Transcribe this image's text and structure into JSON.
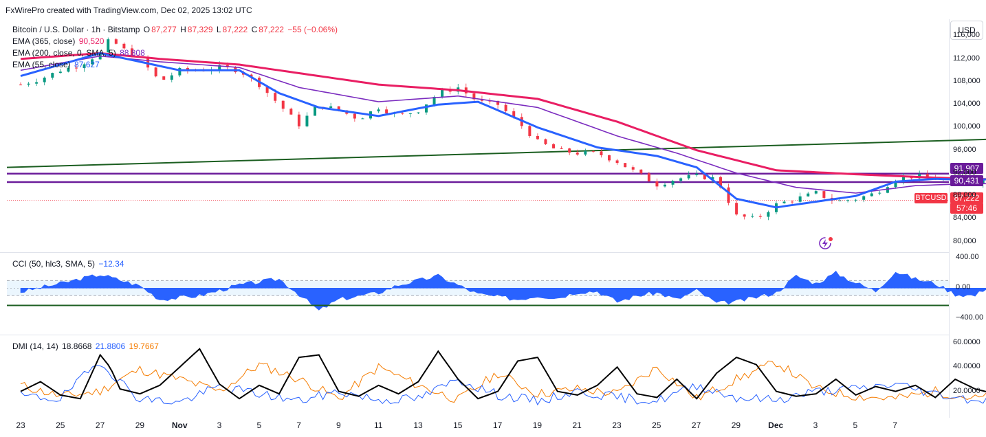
{
  "header": {
    "credit": "FxWirePro created with TradingView.com, Dec 02, 2025 13:02 UTC"
  },
  "currency_button": "USD",
  "legend": {
    "symbol": "Bitcoin / U.S. Dollar · 1h · Bitstamp",
    "o_label": "O",
    "o_value": "87,277",
    "h_label": "H",
    "h_value": "87,329",
    "l_label": "L",
    "l_value": "87,222",
    "c_label": "C",
    "c_value": "87,222",
    "change": "−55 (−0.06%)",
    "ema365_label": "EMA (365, close)",
    "ema365_value": "90,520",
    "ema200_label": "EMA (200, close, 0, SMA, 5)",
    "ema200_value": "88,808",
    "ema55_label": "EMA (55, close)",
    "ema55_value": "87,627",
    "cci_label": "CCI (50, hlc3, SMA, 5)",
    "cci_value": "−12.34",
    "dmi_label": "DMI (14, 14)",
    "dmi_adx": "18.8668",
    "dmi_plus": "21.8806",
    "dmi_minus": "19.7667"
  },
  "price_labels": {
    "upper_line": "91,907",
    "lower_line": "90,431",
    "symbol_tag": "BTCUSD",
    "last_price": "87,222",
    "countdown": "57:46"
  },
  "colors": {
    "up": "#089981",
    "down": "#f23645",
    "ema55": "#2962ff",
    "ema200": "#7b2cbf",
    "ema365": "#e91e63",
    "trend": "#1b5e20",
    "support": "#6a1b9a",
    "cci_fill": "#2962ff",
    "adx": "#000000",
    "di_plus": "#2962ff",
    "di_minus": "#f57c00"
  },
  "chart_data": [
    {
      "type": "candlestick",
      "title": "Bitcoin / U.S. Dollar · 1h · Bitstamp",
      "y_ticks": [
        "116,000",
        "112,000",
        "108,000",
        "104,000",
        "100,000",
        "96,000",
        "92,000",
        "88,000",
        "84,000",
        "80,000"
      ],
      "ylim": [
        79000,
        117500
      ],
      "x_ticks": [
        "23",
        "25",
        "27",
        "29",
        "Nov",
        "3",
        "5",
        "7",
        "9",
        "11",
        "13",
        "15",
        "17",
        "19",
        "21",
        "23",
        "25",
        "27",
        "29",
        "Dec",
        "3",
        "5",
        "7"
      ],
      "price_path": [
        [
          0,
          107500
        ],
        [
          1,
          108500
        ],
        [
          2,
          110000
        ],
        [
          3,
          111000
        ],
        [
          4,
          113000
        ],
        [
          4.5,
          115500
        ],
        [
          5,
          114000
        ],
        [
          6,
          112000
        ],
        [
          7,
          108000
        ],
        [
          8,
          110000
        ],
        [
          9,
          110000
        ],
        [
          10,
          110500
        ],
        [
          11,
          110000
        ],
        [
          12,
          107500
        ],
        [
          13,
          104000
        ],
        [
          14,
          100500
        ],
        [
          15,
          104000
        ],
        [
          16,
          103000
        ],
        [
          17,
          101500
        ],
        [
          18,
          103500
        ],
        [
          19,
          102000
        ],
        [
          20,
          103000
        ],
        [
          21,
          106000
        ],
        [
          22,
          107000
        ],
        [
          23,
          104500
        ],
        [
          24,
          104000
        ],
        [
          25,
          101000
        ],
        [
          26,
          97500
        ],
        [
          27,
          96000
        ],
        [
          28,
          95500
        ],
        [
          29,
          95500
        ],
        [
          30,
          94000
        ],
        [
          31,
          92000
        ],
        [
          32,
          90000
        ],
        [
          33,
          91000
        ],
        [
          34,
          91500
        ],
        [
          35,
          91000
        ],
        [
          36,
          84500
        ],
        [
          37,
          84000
        ],
        [
          38,
          86500
        ],
        [
          39,
          87500
        ],
        [
          40,
          88500
        ],
        [
          41,
          87000
        ],
        [
          42,
          87500
        ],
        [
          43,
          88500
        ],
        [
          44,
          91000
        ],
        [
          45,
          91500
        ],
        [
          46,
          91000
        ],
        [
          47,
          90500
        ],
        [
          48,
          90500
        ],
        [
          49,
          91000
        ],
        [
          50,
          86500
        ],
        [
          51,
          85000
        ],
        [
          52,
          86500
        ],
        [
          53,
          87222
        ]
      ],
      "ema55": [
        [
          0,
          109000
        ],
        [
          4,
          113000
        ],
        [
          6,
          111500
        ],
        [
          8,
          110000
        ],
        [
          11,
          110000
        ],
        [
          13,
          106000
        ],
        [
          15,
          103500
        ],
        [
          18,
          102000
        ],
        [
          21,
          104000
        ],
        [
          23,
          104500
        ],
        [
          26,
          100000
        ],
        [
          29,
          96500
        ],
        [
          32,
          95000
        ],
        [
          34,
          93000
        ],
        [
          36,
          87500
        ],
        [
          38,
          86000
        ],
        [
          40,
          87000
        ],
        [
          42,
          88000
        ],
        [
          44,
          90500
        ],
        [
          46,
          91000
        ],
        [
          48,
          90800
        ],
        [
          49,
          91000
        ],
        [
          50,
          89500
        ],
        [
          52,
          88000
        ],
        [
          53,
          87627
        ]
      ],
      "ema200": [
        [
          0,
          110000
        ],
        [
          4,
          112500
        ],
        [
          7,
          111500
        ],
        [
          11,
          110500
        ],
        [
          14,
          107000
        ],
        [
          18,
          104500
        ],
        [
          22,
          105500
        ],
        [
          26,
          103500
        ],
        [
          30,
          98500
        ],
        [
          33,
          95500
        ],
        [
          36,
          92000
        ],
        [
          39,
          89500
        ],
        [
          42,
          88500
        ],
        [
          45,
          89800
        ],
        [
          48,
          90200
        ],
        [
          50,
          90000
        ],
        [
          53,
          88808
        ]
      ],
      "ema365": [
        [
          0,
          112000
        ],
        [
          4,
          113000
        ],
        [
          7,
          112000
        ],
        [
          11,
          111000
        ],
        [
          14,
          109500
        ],
        [
          18,
          107500
        ],
        [
          22,
          106500
        ],
        [
          26,
          105000
        ],
        [
          30,
          101000
        ],
        [
          34,
          96000
        ],
        [
          38,
          92500
        ],
        [
          42,
          91800
        ],
        [
          46,
          91200
        ],
        [
          50,
          90800
        ],
        [
          53,
          90520
        ]
      ],
      "trend_line": [
        [
          0,
          93000
        ],
        [
          53,
          98000
        ]
      ],
      "horizontal_levels": [
        91907,
        90431
      ],
      "last_price": 87222
    },
    {
      "type": "area",
      "title": "CCI (50, hlc3, SMA, 5)",
      "y_ticks": [
        "400.00",
        "0.00",
        "−400.00"
      ],
      "ylim": [
        -600,
        450
      ],
      "bands": [
        100,
        -100
      ],
      "support_level": -230,
      "values": [
        [
          0,
          -50
        ],
        [
          2,
          60
        ],
        [
          4,
          180
        ],
        [
          6,
          30
        ],
        [
          7,
          -150
        ],
        [
          9,
          -100
        ],
        [
          11,
          40
        ],
        [
          13,
          120
        ],
        [
          14,
          -80
        ],
        [
          15,
          -300
        ],
        [
          16,
          -150
        ],
        [
          18,
          -60
        ],
        [
          19,
          40
        ],
        [
          21,
          160
        ],
        [
          23,
          -80
        ],
        [
          25,
          -150
        ],
        [
          26,
          -100
        ],
        [
          27,
          -130
        ],
        [
          28,
          -50
        ],
        [
          29,
          -40
        ],
        [
          30,
          -180
        ],
        [
          31,
          -100
        ],
        [
          32,
          -60
        ],
        [
          33,
          -150
        ],
        [
          34,
          -30
        ],
        [
          35,
          -200
        ],
        [
          36,
          -180
        ],
        [
          37,
          -120
        ],
        [
          38,
          -60
        ],
        [
          39,
          160
        ],
        [
          40,
          60
        ],
        [
          41,
          200
        ],
        [
          42,
          70
        ],
        [
          43,
          -40
        ],
        [
          44,
          220
        ],
        [
          45,
          120
        ],
        [
          46,
          60
        ],
        [
          47,
          -80
        ],
        [
          48,
          -100
        ],
        [
          49,
          90
        ],
        [
          50,
          -550
        ],
        [
          51,
          -200
        ],
        [
          52,
          -50
        ],
        [
          53,
          -12.34
        ]
      ]
    },
    {
      "type": "line",
      "title": "DMI (14, 14)",
      "y_ticks": [
        "60.0000",
        "40.0000",
        "20.0000"
      ],
      "ylim": [
        0,
        65
      ],
      "adx": [
        [
          0,
          20
        ],
        [
          1,
          28
        ],
        [
          2,
          17
        ],
        [
          3,
          14
        ],
        [
          4,
          50
        ],
        [
          4.5,
          40
        ],
        [
          5,
          22
        ],
        [
          6,
          18
        ],
        [
          7,
          25
        ],
        [
          8,
          40
        ],
        [
          9,
          55
        ],
        [
          10,
          26
        ],
        [
          11,
          14
        ],
        [
          12,
          25
        ],
        [
          13,
          18
        ],
        [
          14,
          48
        ],
        [
          15,
          50
        ],
        [
          16,
          20
        ],
        [
          17,
          16
        ],
        [
          18,
          25
        ],
        [
          19,
          18
        ],
        [
          20,
          28
        ],
        [
          21,
          53
        ],
        [
          22,
          30
        ],
        [
          23,
          14
        ],
        [
          24,
          20
        ],
        [
          25,
          45
        ],
        [
          26,
          48
        ],
        [
          27,
          20
        ],
        [
          28,
          17
        ],
        [
          29,
          25
        ],
        [
          30,
          40
        ],
        [
          31,
          18
        ],
        [
          32,
          15
        ],
        [
          33,
          30
        ],
        [
          34,
          14
        ],
        [
          35,
          35
        ],
        [
          36,
          48
        ],
        [
          37,
          42
        ],
        [
          38,
          20
        ],
        [
          39,
          16
        ],
        [
          40,
          18
        ],
        [
          41,
          30
        ],
        [
          42,
          17
        ],
        [
          43,
          24
        ],
        [
          44,
          20
        ],
        [
          45,
          25
        ],
        [
          46,
          15
        ],
        [
          47,
          30
        ],
        [
          48,
          22
        ],
        [
          49,
          18
        ],
        [
          50,
          20
        ],
        [
          51,
          48
        ],
        [
          52,
          28
        ],
        [
          53,
          18.87
        ]
      ],
      "di_plus": [
        [
          0,
          16
        ],
        [
          2,
          14
        ],
        [
          4,
          45
        ],
        [
          5,
          28
        ],
        [
          6,
          14
        ],
        [
          8,
          11
        ],
        [
          10,
          24
        ],
        [
          12,
          18
        ],
        [
          14,
          12
        ],
        [
          16,
          20
        ],
        [
          18,
          13
        ],
        [
          20,
          14
        ],
        [
          22,
          30
        ],
        [
          24,
          17
        ],
        [
          26,
          12
        ],
        [
          28,
          20
        ],
        [
          30,
          15
        ],
        [
          32,
          12
        ],
        [
          34,
          25
        ],
        [
          36,
          15
        ],
        [
          38,
          13
        ],
        [
          40,
          20
        ],
        [
          42,
          22
        ],
        [
          44,
          26
        ],
        [
          46,
          18
        ],
        [
          48,
          13
        ],
        [
          50,
          15
        ],
        [
          52,
          25
        ],
        [
          53,
          21.88
        ]
      ],
      "di_minus": [
        [
          0,
          25
        ],
        [
          2,
          16
        ],
        [
          4,
          20
        ],
        [
          5,
          30
        ],
        [
          6,
          38
        ],
        [
          8,
          30
        ],
        [
          10,
          20
        ],
        [
          12,
          42
        ],
        [
          14,
          30
        ],
        [
          16,
          14
        ],
        [
          18,
          40
        ],
        [
          20,
          25
        ],
        [
          22,
          13
        ],
        [
          24,
          35
        ],
        [
          26,
          18
        ],
        [
          28,
          22
        ],
        [
          30,
          18
        ],
        [
          32,
          40
        ],
        [
          34,
          14
        ],
        [
          36,
          30
        ],
        [
          38,
          44
        ],
        [
          40,
          22
        ],
        [
          42,
          16
        ],
        [
          44,
          14
        ],
        [
          46,
          20
        ],
        [
          48,
          14
        ],
        [
          50,
          20
        ],
        [
          51,
          56
        ],
        [
          52,
          42
        ],
        [
          53,
          19.77
        ]
      ]
    }
  ]
}
